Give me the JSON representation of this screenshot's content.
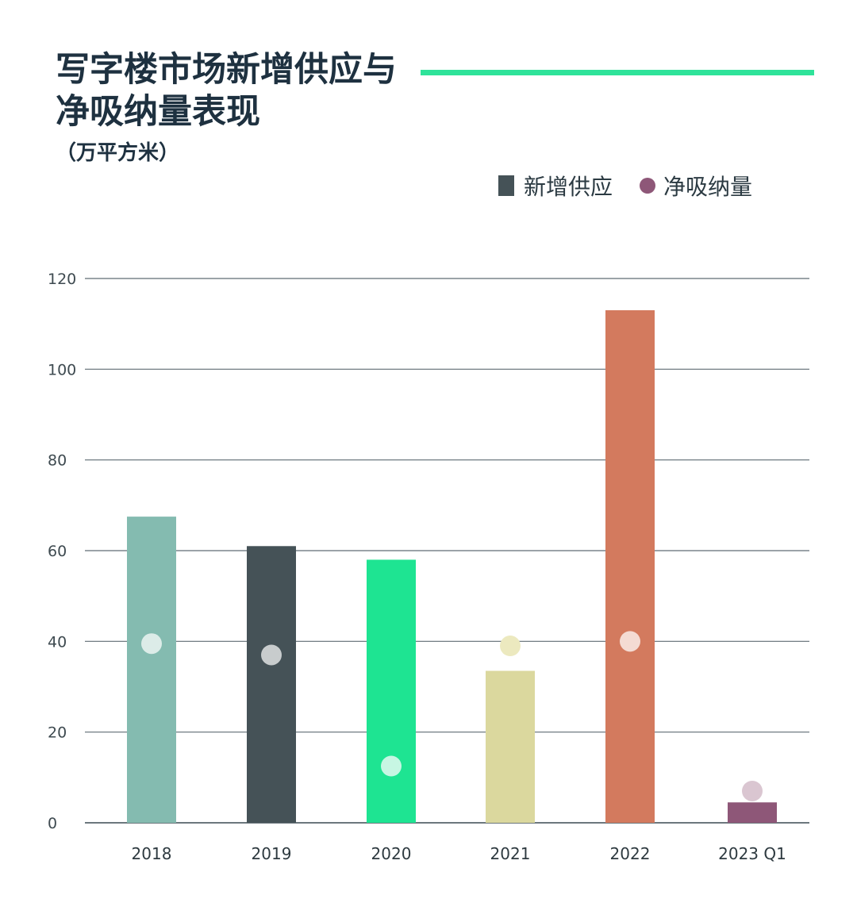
{
  "header": {
    "title_lines": [
      "写字楼市场新增供应与",
      "净吸纳量表现"
    ],
    "unit": "（万平方米）",
    "accent_color": "#2fe39a"
  },
  "legend": {
    "supply_label": "新增供应",
    "absorption_label": "净吸纳量",
    "supply_color": "#455257",
    "absorption_color": "#8e5778"
  },
  "chart_data": {
    "type": "bar",
    "categories": [
      "2018",
      "2019",
      "2020",
      "2021",
      "2022",
      "2023 Q1"
    ],
    "series": [
      {
        "name": "新增供应",
        "type": "bar",
        "values": [
          67.5,
          61,
          58,
          33.5,
          113,
          4.5
        ],
        "colors": [
          "#84bbb0",
          "#455257",
          "#1ee492",
          "#dbd89e",
          "#d37a5e",
          "#8e5778"
        ]
      },
      {
        "name": "净吸纳量",
        "type": "scatter",
        "values": [
          39.5,
          37,
          12.5,
          39,
          40,
          7
        ],
        "colors": [
          "#dcece8",
          "#c8cccd",
          "#c7f6e3",
          "#ece9bf",
          "#f4dbd3",
          "#dac6d1"
        ]
      }
    ],
    "ylim": [
      0,
      120
    ],
    "yticks": [
      0,
      20,
      40,
      60,
      80,
      100,
      120
    ],
    "grid": true,
    "legend_position": "top-right"
  }
}
